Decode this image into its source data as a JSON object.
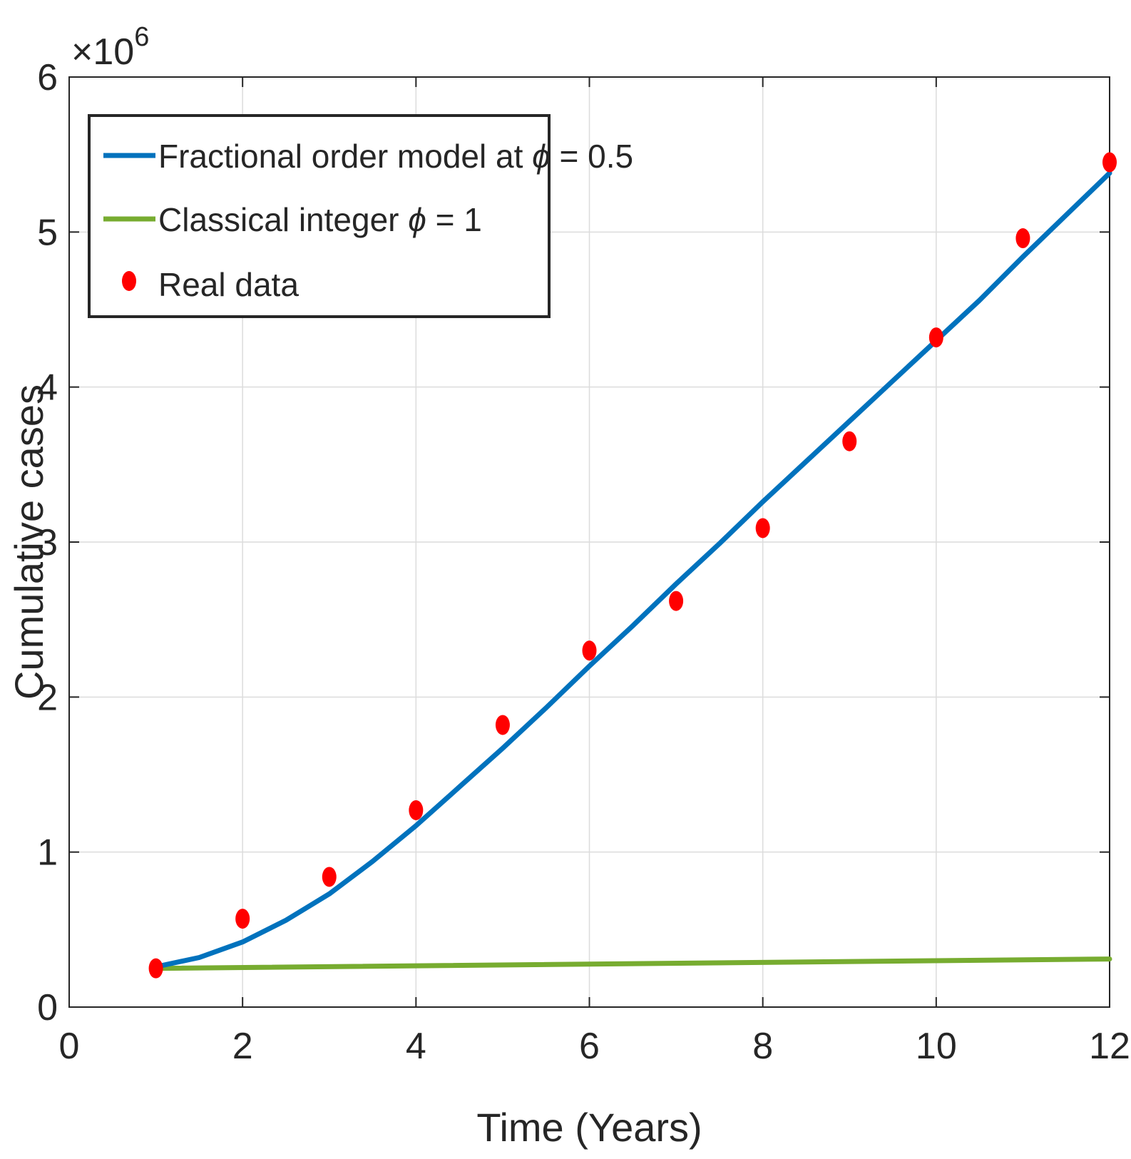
{
  "chart_data": {
    "type": "line",
    "title": "",
    "xlabel": "Time (Years)",
    "ylabel": "Cumulative cases",
    "y_exponent_label": "×10",
    "y_exponent_power": "6",
    "xlim": [
      0,
      12
    ],
    "ylim": [
      0,
      6000000
    ],
    "x_ticks": [
      0,
      2,
      4,
      6,
      8,
      10,
      12
    ],
    "x_tick_labels": [
      "0",
      "2",
      "4",
      "6",
      "8",
      "10",
      "12"
    ],
    "y_ticks": [
      0,
      1000000,
      2000000,
      3000000,
      4000000,
      5000000,
      6000000
    ],
    "y_tick_labels": [
      "0",
      "1",
      "2",
      "3",
      "4",
      "5",
      "6"
    ],
    "grid": true,
    "legend_position": "top-left",
    "series": [
      {
        "name": "Fractional order model at ϕ = 0.5",
        "legend_prefix": "Fractional order model at ",
        "legend_symbol": "ϕ",
        "legend_suffix": " = 0.5",
        "kind": "line",
        "color": "#0072bd",
        "x": [
          1,
          1.5,
          2,
          2.5,
          3,
          3.5,
          4,
          4.5,
          5,
          5.5,
          6,
          6.5,
          7,
          7.5,
          8,
          8.5,
          9,
          9.5,
          10,
          10.5,
          11,
          11.5,
          12
        ],
        "y": [
          260000,
          320000,
          420000,
          560000,
          730000,
          940000,
          1170000,
          1420000,
          1670000,
          1930000,
          2200000,
          2460000,
          2730000,
          2990000,
          3260000,
          3520000,
          3780000,
          4040000,
          4300000,
          4560000,
          4840000,
          5110000,
          5380000
        ]
      },
      {
        "name": "Classical integer ϕ = 1",
        "legend_prefix": "Classical integer ",
        "legend_symbol": "ϕ",
        "legend_suffix": " = 1",
        "kind": "line",
        "color": "#77ac30",
        "x": [
          1,
          12
        ],
        "y": [
          250000,
          310000
        ]
      },
      {
        "name": "Real data",
        "legend_prefix": "Real data",
        "legend_symbol": "",
        "legend_suffix": "",
        "kind": "scatter",
        "color": "#ff0000",
        "x": [
          1,
          2,
          3,
          4,
          5,
          6,
          7,
          8,
          9,
          10,
          11,
          12
        ],
        "y": [
          250000,
          570000,
          840000,
          1270000,
          1820000,
          2300000,
          2620000,
          3090000,
          3650000,
          4320000,
          4960000,
          5450000
        ]
      }
    ]
  }
}
